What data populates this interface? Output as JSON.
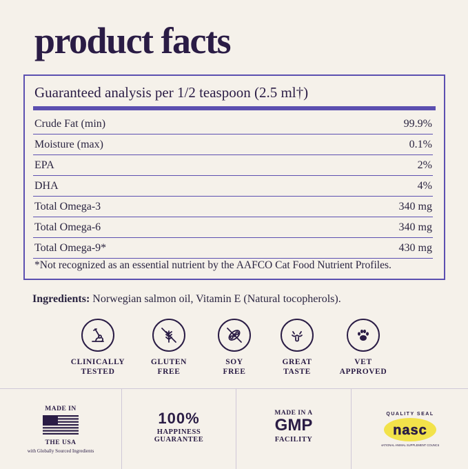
{
  "title": "product facts",
  "analysis": {
    "heading": "Guaranteed analysis per 1/2 teaspoon (2.5 ml†)",
    "rows": [
      {
        "label": "Crude Fat (min)",
        "value": "99.9%"
      },
      {
        "label": "Moisture (max)",
        "value": "0.1%"
      },
      {
        "label": "EPA",
        "value": "2%"
      },
      {
        "label": "DHA",
        "value": "4%"
      },
      {
        "label": "Total Omega-3",
        "value": "340 mg"
      },
      {
        "label": "Total Omega-6",
        "value": "340 mg"
      },
      {
        "label": "Total Omega-9*",
        "value": "430 mg"
      }
    ],
    "footnote": "*Not recognized as an essential nutrient by the AAFCO Cat Food Nutrient Profiles."
  },
  "ingredients": {
    "label": "Ingredients:",
    "text": " Norwegian salmon oil, Vitamin E (Natural tocopherols)."
  },
  "badges": [
    {
      "line1": "CLINICALLY",
      "line2": "TESTED",
      "icon": "microscope-icon"
    },
    {
      "line1": "GLUTEN",
      "line2": "FREE",
      "icon": "no-wheat-icon"
    },
    {
      "line1": "SOY",
      "line2": "FREE",
      "icon": "no-soy-icon"
    },
    {
      "line1": "GREAT",
      "line2": "TASTE",
      "icon": "cat-tongue-icon"
    },
    {
      "line1": "VET",
      "line2": "APPROVED",
      "icon": "paw-icon"
    }
  ],
  "footer": {
    "usa": {
      "top": "MADE IN",
      "bottom": "THE USA",
      "note": "with Globally Sourced Ingredients"
    },
    "happiness": {
      "big": "100%",
      "line1": "HAPPINESS",
      "line2": "GUARANTEE"
    },
    "gmp": {
      "top": "MADE IN A",
      "big": "GMP",
      "bottom": "FACILITY"
    },
    "nasc": {
      "arc_top": "QUALITY SEAL",
      "logo": "nasc",
      "arc_bottom": "NATIONAL ANIMAL SUPPLEMENT COUNCIL"
    }
  },
  "colors": {
    "accent": "#5b4fb0",
    "text": "#2a1c45",
    "background": "#f5f1ea",
    "seal": "#f2e24a"
  }
}
